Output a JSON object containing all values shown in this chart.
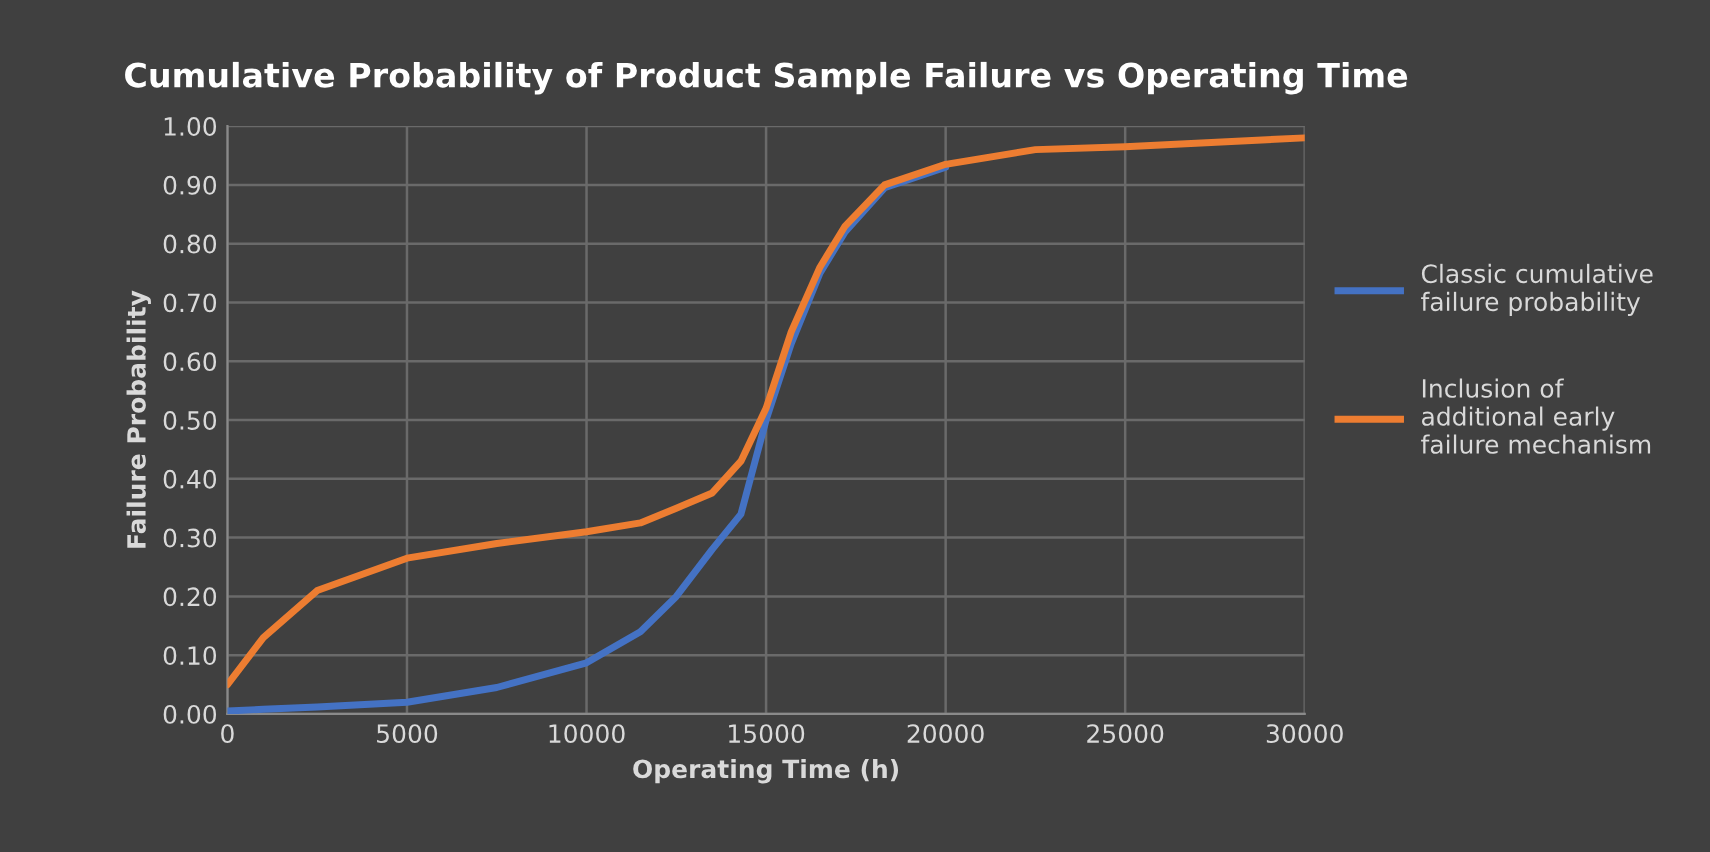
{
  "chart_data": {
    "type": "line",
    "title": "Cumulative Probability of Product Sample Failure vs Operating Time",
    "xlabel": "Operating Time (h)",
    "ylabel": "Failure Probability",
    "x": [
      0,
      1000,
      2500,
      5000,
      7500,
      10000,
      11500,
      12500,
      13500,
      14300,
      15000,
      15700,
      16500,
      17200,
      18300,
      20000,
      22500,
      25000,
      30000
    ],
    "series": [
      {
        "name": "Classic cumulative failure probability",
        "color": "#4472c4",
        "values": [
          0.005,
          0.008,
          0.012,
          0.02,
          0.045,
          0.087,
          0.14,
          0.2,
          0.28,
          0.34,
          0.5,
          0.63,
          0.75,
          0.82,
          0.895,
          0.93,
          null,
          null,
          null
        ]
      },
      {
        "name": "Inclusion of additional early failure mechanism",
        "color": "#ed7d31",
        "values": [
          0.05,
          0.13,
          0.21,
          0.265,
          0.29,
          0.31,
          0.325,
          0.35,
          0.376,
          0.43,
          0.52,
          0.65,
          0.76,
          0.83,
          0.9,
          0.935,
          0.96,
          0.965,
          0.98
        ]
      }
    ],
    "xlim": [
      0,
      30000
    ],
    "xticks": [
      0,
      5000,
      10000,
      15000,
      20000,
      25000,
      30000
    ],
    "ylim": [
      0,
      1.0
    ],
    "yticks": [
      {
        "value": 0,
        "label": "0.00"
      },
      {
        "value": 0.1,
        "label": "0.10"
      },
      {
        "value": 0.2,
        "label": "0.20"
      },
      {
        "value": 0.3,
        "label": "0.30"
      },
      {
        "value": 0.4,
        "label": "0.40"
      },
      {
        "value": 0.5,
        "label": "0.50"
      },
      {
        "value": 0.6,
        "label": "0.60"
      },
      {
        "value": 0.7,
        "label": "0.70"
      },
      {
        "value": 0.8,
        "label": "0.80"
      },
      {
        "value": 0.9,
        "label": "0.90"
      },
      {
        "value": 1.0,
        "label": "1.00"
      }
    ],
    "grid": true,
    "legend": "right",
    "marker": "none",
    "line_style": "solid"
  }
}
